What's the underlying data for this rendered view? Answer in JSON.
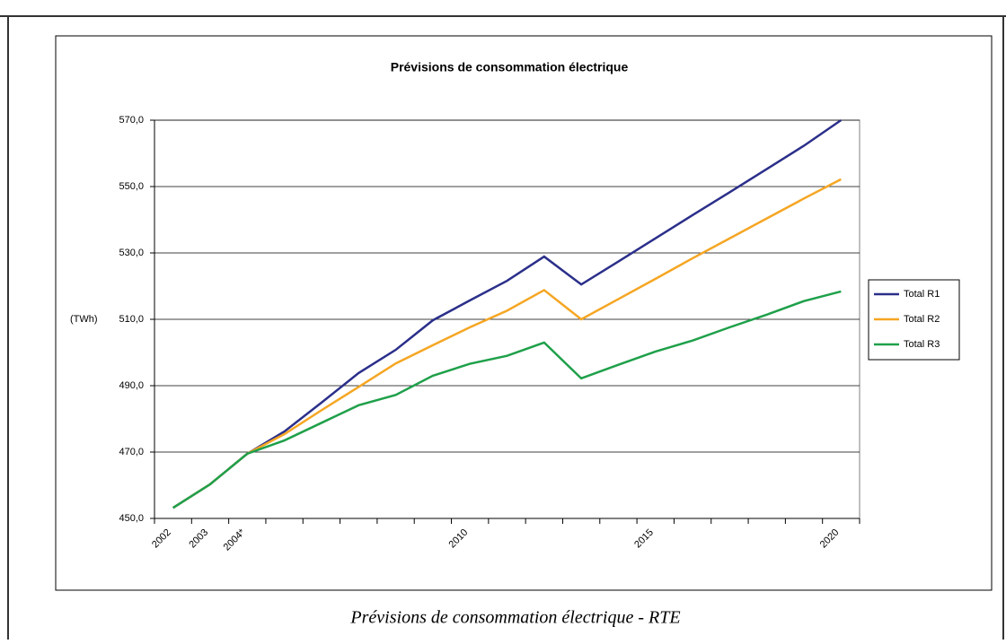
{
  "chart_data": {
    "type": "line",
    "title": "Prévisions de consommation électrique",
    "y_label": "(TWh)",
    "caption": "Prévisions de consommation électrique - RTE",
    "categories": [
      "2002",
      "2003",
      "2004*",
      null,
      null,
      null,
      null,
      null,
      "2010",
      null,
      null,
      null,
      null,
      "2015",
      null,
      null,
      null,
      null,
      "2020"
    ],
    "series": [
      {
        "name": "Total R1",
        "color": "#2b2f8a",
        "values": [
          453.2,
          460.3,
          469.5,
          476.2,
          484.9,
          493.8,
          500.8,
          509.7,
          515.7,
          521.6,
          528.9,
          520.5,
          527.4,
          534.4,
          541.4,
          548.3,
          555.3,
          562.3,
          570.0
        ]
      },
      {
        "name": "Total R2",
        "color": "#f5a623",
        "values": [
          453.2,
          460.3,
          469.5,
          475.4,
          482.6,
          489.6,
          496.7,
          502.2,
          507.6,
          512.6,
          518.8,
          510.0,
          516.1,
          522.2,
          528.4,
          534.4,
          540.4,
          546.4,
          552.2
        ]
      },
      {
        "name": "Total R3",
        "color": "#1fa04a",
        "values": [
          453.2,
          460.3,
          469.5,
          473.5,
          478.8,
          484.1,
          487.2,
          493.0,
          496.6,
          499.0,
          503.0,
          492.2,
          496.3,
          500.3,
          503.6,
          507.6,
          511.4,
          515.5,
          518.4
        ]
      }
    ],
    "ylim": [
      450,
      570
    ],
    "yticks": [
      {
        "value": 450,
        "label": "450,0"
      },
      {
        "value": 470,
        "label": "470,0"
      },
      {
        "value": 490,
        "label": "490,0"
      },
      {
        "value": 510,
        "label": "510,0"
      },
      {
        "value": 530,
        "label": "530,0"
      },
      {
        "value": 550,
        "label": "550,0"
      },
      {
        "value": 570,
        "label": "570,0"
      }
    ],
    "grid": true,
    "legend": "right"
  }
}
